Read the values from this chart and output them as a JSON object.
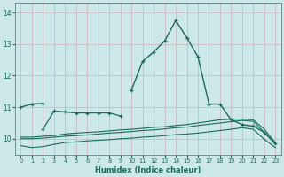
{
  "xlabel": "Humidex (Indice chaleur)",
  "ylabel": "",
  "background_color": "#cce8e8",
  "grid_color": "#b8d0d0",
  "line_color": "#1a6b5a",
  "xlim": [
    -0.5,
    23.5
  ],
  "ylim": [
    9.5,
    14.3
  ],
  "yticks": [
    10,
    11,
    12,
    13,
    14
  ],
  "xticks": [
    0,
    1,
    2,
    3,
    4,
    5,
    6,
    7,
    8,
    9,
    10,
    11,
    12,
    13,
    14,
    15,
    16,
    17,
    18,
    19,
    20,
    21,
    22,
    23
  ],
  "series": [
    {
      "x": [
        0,
        1,
        2,
        3,
        4,
        5,
        6,
        7,
        8,
        9,
        10,
        11,
        12,
        13,
        14,
        15,
        16,
        17,
        18,
        19,
        20,
        21,
        22,
        23
      ],
      "y": [
        11.0,
        11.1,
        11.12,
        null,
        null,
        null,
        null,
        null,
        null,
        null,
        11.55,
        12.45,
        12.75,
        13.1,
        13.75,
        13.2,
        12.6,
        11.1,
        11.1,
        10.6,
        10.45,
        10.4,
        10.2,
        9.85
      ],
      "marker": true,
      "markersize": 3.5,
      "linewidth": 1.0
    },
    {
      "x": [
        2,
        3,
        4,
        5,
        6,
        7,
        8,
        9
      ],
      "y": [
        10.3,
        10.88,
        10.85,
        10.82,
        10.82,
        10.82,
        10.82,
        10.72
      ],
      "marker": true,
      "markersize": 3.0,
      "linewidth": 0.9
    },
    {
      "x": [
        0,
        1,
        2,
        3,
        4,
        5,
        6,
        7,
        8,
        9,
        10,
        11,
        12,
        13,
        14,
        15,
        16,
        17,
        18,
        19,
        20,
        21,
        22,
        23
      ],
      "y": [
        10.05,
        10.05,
        10.08,
        10.1,
        10.15,
        10.18,
        10.2,
        10.22,
        10.25,
        10.28,
        10.3,
        10.33,
        10.36,
        10.38,
        10.42,
        10.45,
        10.5,
        10.55,
        10.6,
        10.62,
        10.62,
        10.6,
        10.3,
        9.88
      ],
      "marker": false,
      "markersize": 2,
      "linewidth": 0.8
    },
    {
      "x": [
        0,
        1,
        2,
        3,
        4,
        5,
        6,
        7,
        8,
        9,
        10,
        11,
        12,
        13,
        14,
        15,
        16,
        17,
        18,
        19,
        20,
        21,
        22,
        23
      ],
      "y": [
        10.0,
        10.0,
        10.02,
        10.05,
        10.08,
        10.1,
        10.12,
        10.15,
        10.18,
        10.2,
        10.23,
        10.26,
        10.28,
        10.31,
        10.35,
        10.37,
        10.42,
        10.46,
        10.5,
        10.54,
        10.58,
        10.55,
        10.2,
        9.83
      ],
      "marker": false,
      "markersize": 2,
      "linewidth": 0.8
    },
    {
      "x": [
        0,
        1,
        2,
        3,
        4,
        5,
        6,
        7,
        8,
        9,
        10,
        11,
        12,
        13,
        14,
        15,
        16,
        17,
        18,
        19,
        20,
        21,
        22,
        23
      ],
      "y": [
        9.78,
        9.72,
        9.75,
        9.82,
        9.88,
        9.9,
        9.93,
        9.95,
        9.97,
        10.0,
        10.02,
        10.05,
        10.07,
        10.1,
        10.13,
        10.15,
        10.18,
        10.22,
        10.26,
        10.3,
        10.35,
        10.3,
        9.98,
        9.72
      ],
      "marker": false,
      "markersize": 2,
      "linewidth": 0.8
    }
  ]
}
